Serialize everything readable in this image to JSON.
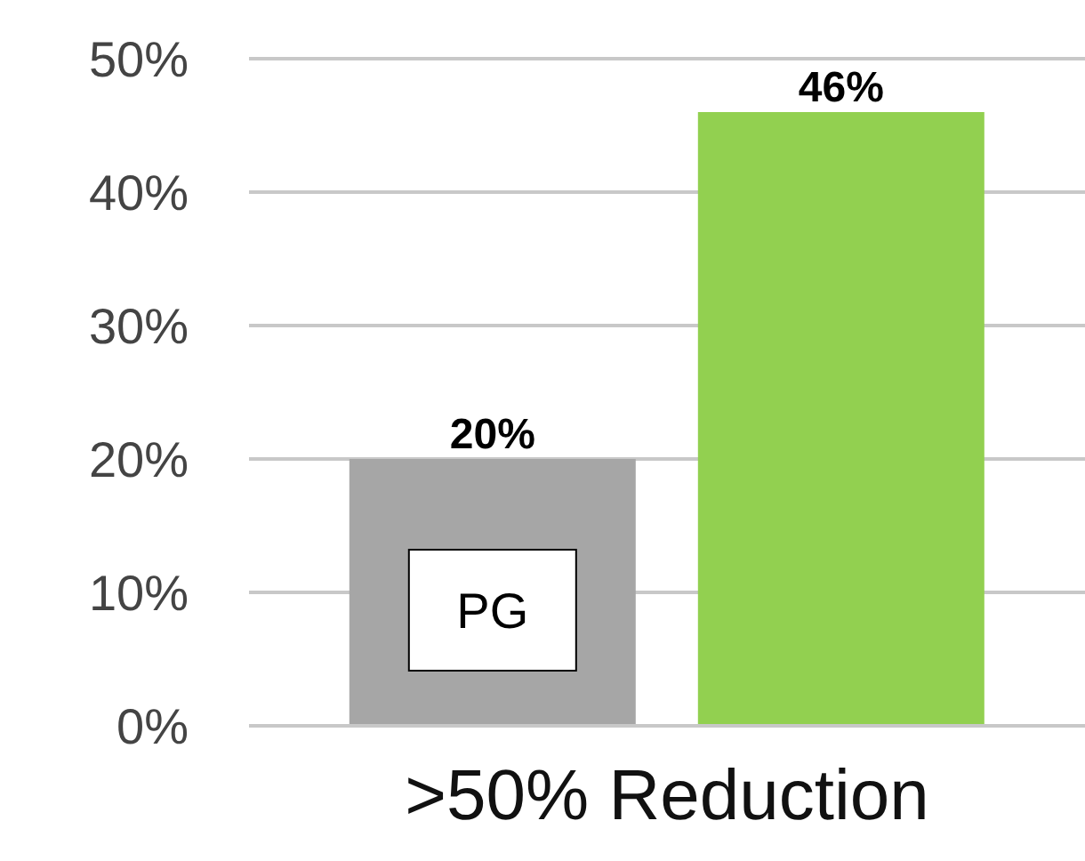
{
  "chart_data": {
    "type": "bar",
    "categories": [
      ">50% Reduction"
    ],
    "series": [
      {
        "name": "PG",
        "color": "#a6a6a6",
        "values": [
          20
        ],
        "value_labels": [
          "20%"
        ]
      },
      {
        "color": "#92d050",
        "values": [
          46
        ],
        "value_labels": [
          "46%"
        ]
      }
    ],
    "ylim": [
      0,
      50
    ],
    "yticks": [
      {
        "value": 0,
        "label": "0%"
      },
      {
        "value": 10,
        "label": "10%"
      },
      {
        "value": 20,
        "label": "20%"
      },
      {
        "value": 30,
        "label": "30%"
      },
      {
        "value": 40,
        "label": "40%"
      },
      {
        "value": 50,
        "label": "50%"
      }
    ],
    "grid": "y",
    "legend": false
  }
}
